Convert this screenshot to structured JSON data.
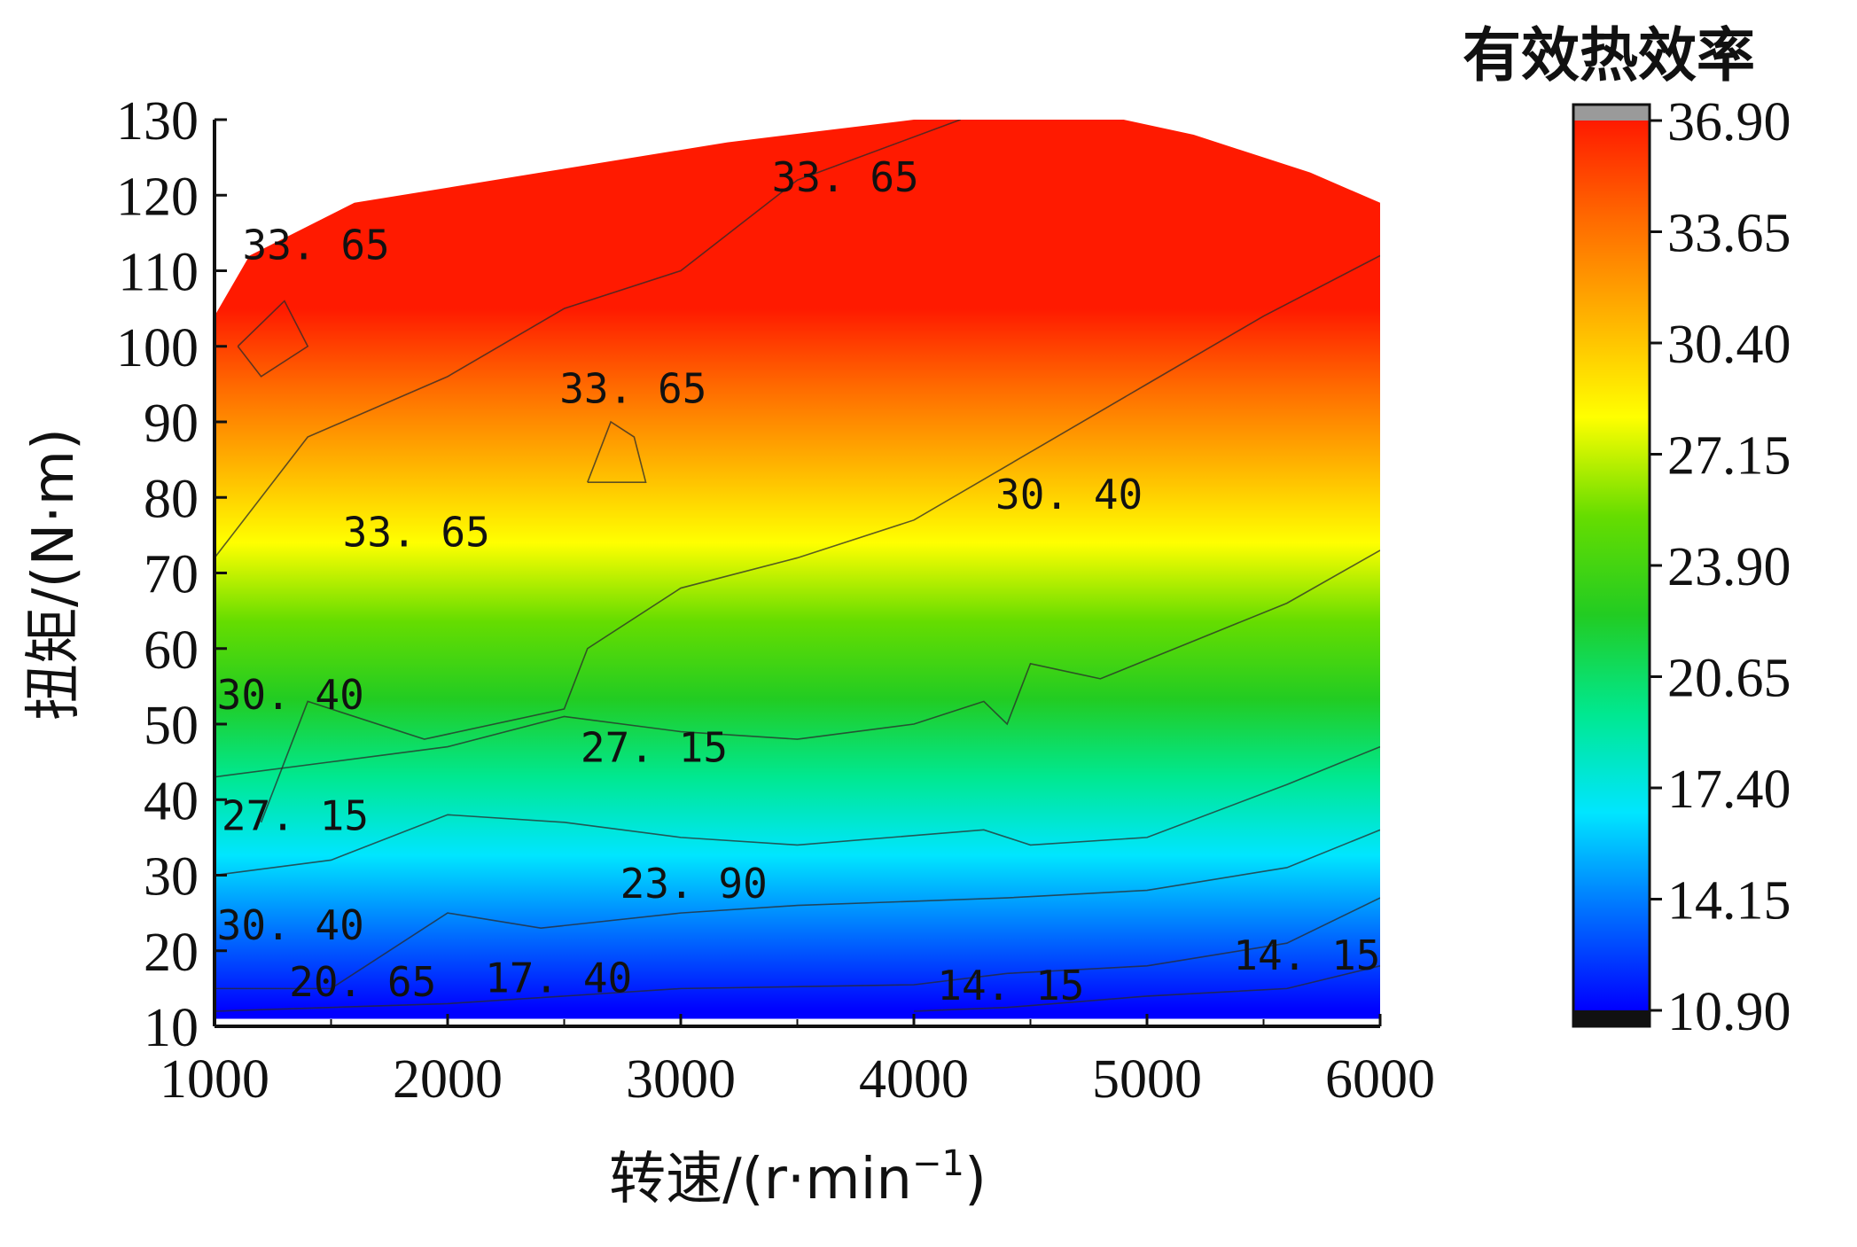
{
  "chart_data": {
    "type": "heatmap",
    "subtype": "filled-contour",
    "colorbar_title": "有效热效率",
    "xlabel": "转速/(r·min",
    "xlabel_sup": "−1",
    "xlabel_end": ")",
    "ylabel": "扭矩/(N·m)",
    "xlim": [
      1000,
      6000
    ],
    "ylim": [
      10,
      130
    ],
    "x_ticks": [
      "1000",
      "2000",
      "3000",
      "4000",
      "5000",
      "6000"
    ],
    "y_ticks": [
      "10",
      "20",
      "30",
      "40",
      "50",
      "60",
      "70",
      "80",
      "90",
      "100",
      "110",
      "120",
      "130"
    ],
    "colorbar_ticks": [
      "10.90",
      "14.15",
      "17.40",
      "20.65",
      "23.90",
      "27.15",
      "30.40",
      "33.65",
      "36.90"
    ],
    "colorbar_range": [
      10.9,
      36.9
    ],
    "colormap": [
      "#0000ff",
      "#0070ff",
      "#00e6ff",
      "#00e890",
      "#22cc22",
      "#66dd00",
      "#ffff00",
      "#ffb300",
      "#ff6a00",
      "#ff1a00"
    ],
    "upper_boundary": [
      [
        1000,
        104
      ],
      [
        1150,
        112
      ],
      [
        1600,
        119
      ],
      [
        2400,
        123
      ],
      [
        3200,
        127
      ],
      [
        4000,
        130
      ],
      [
        4900,
        130
      ],
      [
        5200,
        128
      ],
      [
        5700,
        123
      ],
      [
        6000,
        119
      ]
    ],
    "lower_boundary": [
      [
        1000,
        11
      ],
      [
        6000,
        11
      ]
    ],
    "contour_lines": [
      {
        "level": 14.15,
        "points": [
          [
            4000,
            12
          ],
          [
            4400,
            12.5
          ],
          [
            5000,
            14
          ],
          [
            5600,
            15
          ],
          [
            6000,
            18
          ]
        ]
      },
      {
        "level": 17.4,
        "points": [
          [
            1000,
            12
          ],
          [
            2000,
            13
          ],
          [
            3000,
            15
          ],
          [
            4000,
            15.5
          ],
          [
            4400,
            17
          ],
          [
            5000,
            18
          ],
          [
            5600,
            21
          ],
          [
            6000,
            27
          ]
        ]
      },
      {
        "level": 20.65,
        "points": [
          [
            1000,
            15
          ],
          [
            1500,
            15
          ],
          [
            2000,
            25
          ],
          [
            2400,
            23
          ],
          [
            3000,
            25
          ],
          [
            3500,
            26
          ],
          [
            4400,
            27
          ],
          [
            5000,
            28
          ],
          [
            5600,
            31
          ],
          [
            6000,
            36
          ]
        ]
      },
      {
        "level": 23.9,
        "points": [
          [
            1000,
            30
          ],
          [
            1500,
            32
          ],
          [
            2000,
            38
          ],
          [
            2500,
            37
          ],
          [
            3000,
            35
          ],
          [
            3500,
            34
          ],
          [
            4300,
            36
          ],
          [
            4500,
            34
          ],
          [
            5000,
            35
          ],
          [
            5600,
            42
          ],
          [
            6000,
            47
          ]
        ]
      },
      {
        "level": 27.15,
        "points": [
          [
            1000,
            43
          ],
          [
            1500,
            45
          ],
          [
            2000,
            47
          ],
          [
            2500,
            51
          ],
          [
            3000,
            49
          ],
          [
            3500,
            48
          ],
          [
            4000,
            50
          ],
          [
            4300,
            53
          ],
          [
            4400,
            50
          ],
          [
            4500,
            58
          ],
          [
            4800,
            56
          ],
          [
            5200,
            61
          ],
          [
            5600,
            66
          ],
          [
            6000,
            73
          ]
        ]
      },
      {
        "level": 30.4,
        "points": [
          [
            1200,
            37
          ],
          [
            1400,
            53
          ],
          [
            1900,
            48
          ],
          [
            2500,
            52
          ],
          [
            2600,
            60
          ],
          [
            3000,
            68
          ],
          [
            3500,
            72
          ],
          [
            4000,
            77
          ],
          [
            4500,
            86
          ],
          [
            5000,
            95
          ],
          [
            5500,
            104
          ],
          [
            6000,
            112
          ]
        ]
      },
      {
        "level": 33.65,
        "points": [
          [
            1000,
            72
          ],
          [
            1400,
            88
          ],
          [
            2000,
            96
          ],
          [
            2500,
            105
          ],
          [
            3000,
            110
          ],
          [
            3500,
            122
          ],
          [
            4200,
            130
          ]
        ]
      },
      {
        "level": 35.0,
        "points": [
          [
            1100,
            100
          ],
          [
            1300,
            106
          ],
          [
            1400,
            100
          ],
          [
            1200,
            96
          ],
          [
            1100,
            100
          ]
        ]
      },
      {
        "level": 33.65,
        "points": [
          [
            2600,
            82
          ],
          [
            2850,
            82
          ],
          [
            2800,
            88
          ],
          [
            2700,
            90
          ],
          [
            2600,
            82
          ]
        ]
      }
    ],
    "inline_labels": [
      {
        "text": "33. 65",
        "x": 1120,
        "y": 111.5
      },
      {
        "text": "33. 65",
        "x": 3390,
        "y": 120.5
      },
      {
        "text": "33. 65",
        "x": 2480,
        "y": 92.5
      },
      {
        "text": "33. 65",
        "x": 1550,
        "y": 73.5
      },
      {
        "text": "30. 40",
        "x": 4350,
        "y": 78.5
      },
      {
        "text": "30. 40",
        "x": 1010,
        "y": 52
      },
      {
        "text": "30. 40",
        "x": 1010,
        "y": 21.5
      },
      {
        "text": "27. 15",
        "x": 2570,
        "y": 45
      },
      {
        "text": "27. 15",
        "x": 1030,
        "y": 36
      },
      {
        "text": "23. 90",
        "x": 2740,
        "y": 27
      },
      {
        "text": "20. 65",
        "x": 1320,
        "y": 14
      },
      {
        "text": "17. 40",
        "x": 2160,
        "y": 14.5
      },
      {
        "text": "14. 15",
        "x": 4100,
        "y": 13.5
      },
      {
        "text": "14. 15",
        "x": 5370,
        "y": 17.5
      }
    ]
  }
}
